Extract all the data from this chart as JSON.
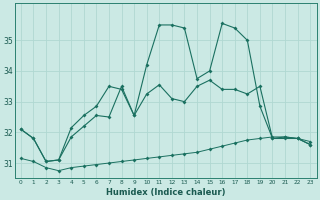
{
  "xlabel": "Humidex (Indice chaleur)",
  "background_color": "#cbe9e4",
  "grid_color": "#b0d8d2",
  "line_color": "#1a7060",
  "xlim": [
    -0.5,
    23.5
  ],
  "ylim": [
    30.5,
    36.2
  ],
  "yticks": [
    31,
    32,
    33,
    34,
    35
  ],
  "xticks": [
    0,
    1,
    2,
    3,
    4,
    5,
    6,
    7,
    8,
    9,
    10,
    11,
    12,
    13,
    14,
    15,
    16,
    17,
    18,
    19,
    20,
    21,
    22,
    23
  ],
  "line1_y": [
    31.15,
    31.05,
    30.85,
    30.75,
    30.85,
    30.9,
    30.95,
    31.0,
    31.05,
    31.1,
    31.15,
    31.2,
    31.25,
    31.3,
    31.35,
    31.45,
    31.55,
    31.65,
    31.75,
    31.8,
    31.85,
    31.85,
    31.8,
    31.7
  ],
  "line2_y": [
    32.1,
    31.8,
    31.05,
    31.1,
    31.85,
    32.2,
    32.55,
    32.5,
    33.5,
    32.55,
    33.25,
    33.55,
    33.1,
    33.0,
    33.5,
    33.7,
    33.4,
    33.4,
    33.25,
    33.5,
    31.8,
    31.8,
    31.8,
    31.6
  ],
  "line3_y": [
    32.1,
    31.8,
    31.05,
    31.1,
    32.15,
    32.55,
    32.85,
    33.5,
    33.4,
    32.55,
    34.2,
    35.5,
    35.5,
    35.4,
    33.75,
    34.0,
    35.55,
    35.4,
    35.0,
    32.85,
    31.8,
    31.85,
    31.8,
    31.6
  ]
}
